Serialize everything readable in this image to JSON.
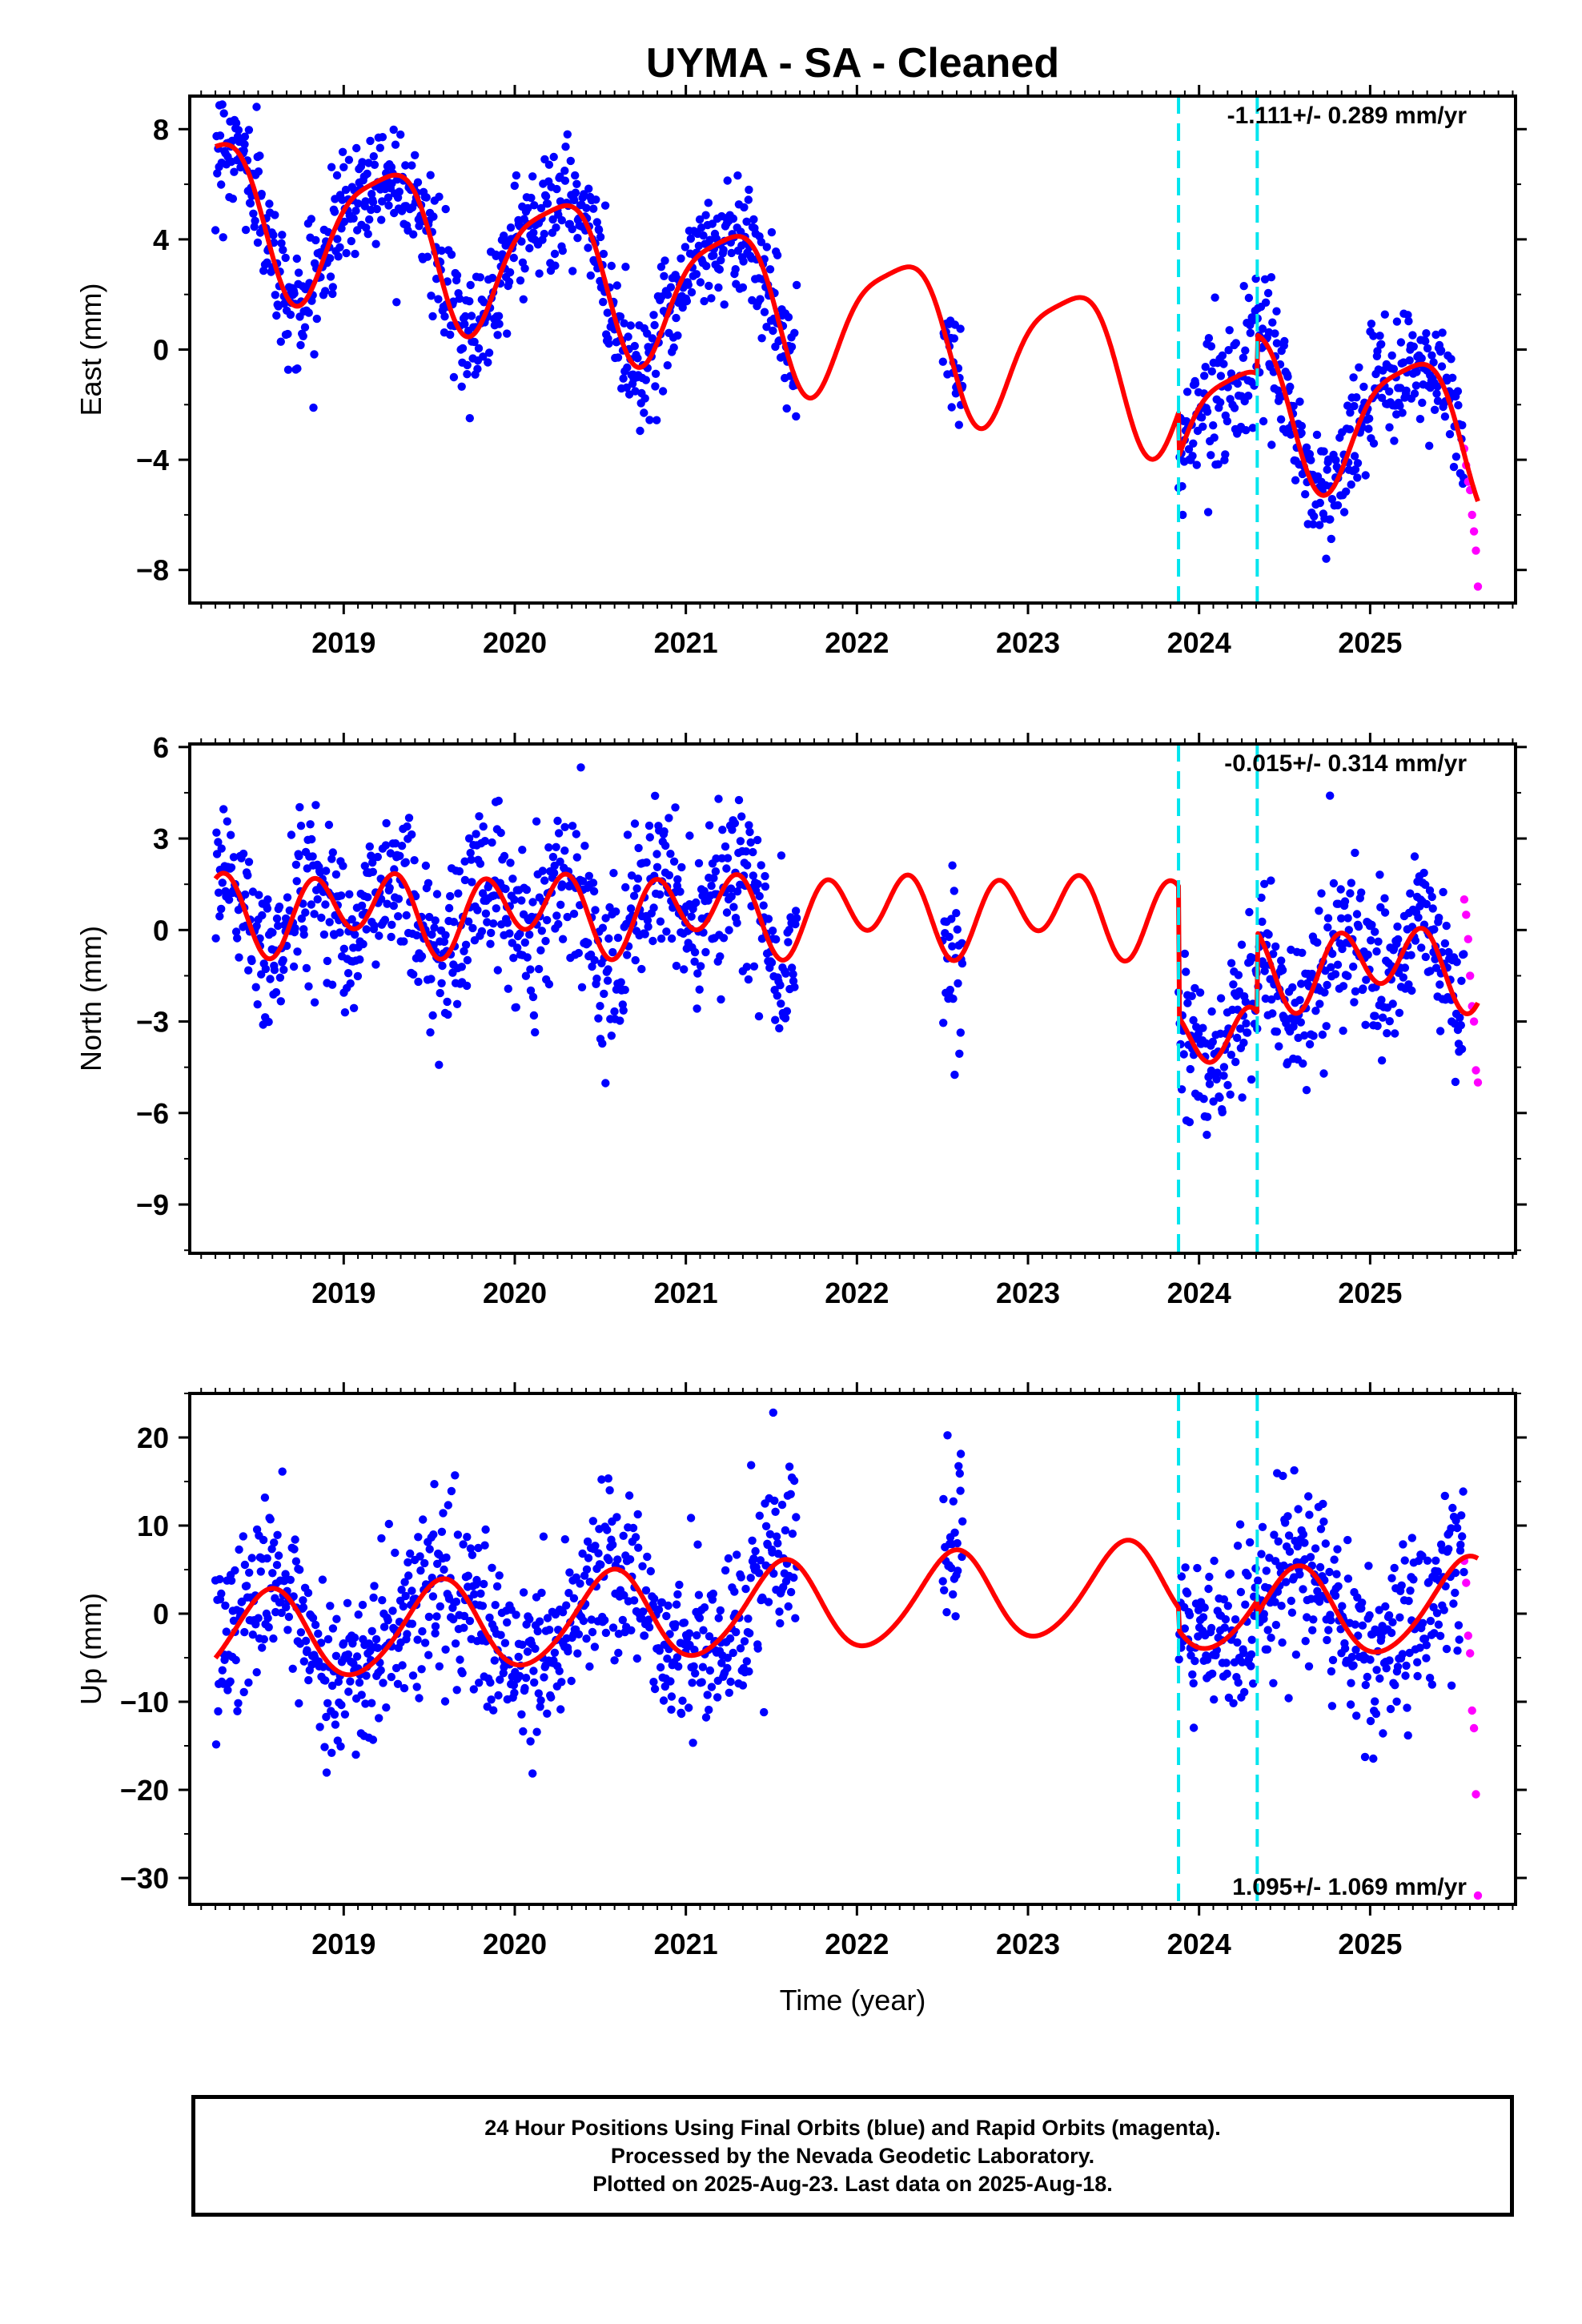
{
  "title": "UYMA  - SA - Cleaned",
  "colors": {
    "final_orbits": "#0000ff",
    "rapid_orbits": "#ff00ff",
    "model": "#ff0000",
    "equipment_change": "#00e5ee",
    "axes": "#000000"
  },
  "footer": {
    "line1": "24 Hour Positions Using Final Orbits (blue) and Rapid Orbits (magenta).",
    "line2": "Processed by the Nevada Geodetic Laboratory.",
    "line3": "Plotted on 2025-Aug-23. Last data on 2025-Aug-18."
  },
  "chart_data": [
    {
      "type": "scatter",
      "component": "East",
      "ylabel": "East (mm)",
      "xlabel": "",
      "xlim": [
        2018.1,
        2025.85
      ],
      "ylim": [
        -9.2,
        9.2
      ],
      "yticks": [
        -8,
        -4,
        0,
        4,
        8
      ],
      "xticks": [
        2019,
        2020,
        2021,
        2022,
        2023,
        2024,
        2025
      ],
      "grid": false,
      "rate_label": "-1.111+/- 0.289 mm/yr",
      "rate_label_position": "top-right",
      "offsets": [
        2023.88,
        2024.34
      ],
      "data_segments": [
        [
          2018.25,
          2021.65
        ],
        [
          2022.5,
          2022.62
        ],
        [
          2023.88,
          2025.55
        ]
      ],
      "rapid_range": [
        2025.55,
        2025.63
      ],
      "rapid_values": [
        -3.6,
        -4.2,
        -4.8,
        -5.1,
        -6.0,
        -6.6,
        -7.3,
        -8.6
      ],
      "model": {
        "start": 2018.25,
        "end": 2025.63,
        "mean": 1.2,
        "trend_mm_per_yr": -1.111,
        "reference_year": 2021.9,
        "annual_amplitude": 2.6,
        "annual_phase": 0.05,
        "semiannual_amplitude": 0.6,
        "semiannual_phase": 2.2,
        "steps": [
          {
            "year": 2023.88,
            "size": -1.6
          },
          {
            "year": 2024.34,
            "size": 1.4
          }
        ]
      },
      "scatter_noise_std": 1.1
    },
    {
      "type": "scatter",
      "component": "North",
      "ylabel": "North (mm)",
      "xlabel": "",
      "xlim": [
        2018.1,
        2025.85
      ],
      "ylim": [
        -10.6,
        6.1
      ],
      "yticks": [
        -9,
        -6,
        -3,
        0,
        3,
        6
      ],
      "xticks": [
        2019,
        2020,
        2021,
        2022,
        2023,
        2024,
        2025
      ],
      "grid": false,
      "rate_label": "-0.015+/- 0.314 mm/yr",
      "rate_label_position": "top-right",
      "offsets": [
        2023.88,
        2024.34
      ],
      "data_segments": [
        [
          2018.25,
          2021.65
        ],
        [
          2022.5,
          2022.62
        ],
        [
          2023.88,
          2025.55
        ]
      ],
      "rapid_range": [
        2025.55,
        2025.63
      ],
      "rapid_values": [
        1.0,
        0.5,
        -0.3,
        -1.5,
        -2.5,
        -3.0,
        -4.6,
        -5.0
      ],
      "model": {
        "start": 2018.25,
        "end": 2025.63,
        "mean": 0.6,
        "trend_mm_per_yr": -0.015,
        "reference_year": 2021.9,
        "annual_amplitude": 0.5,
        "annual_phase": 1.0,
        "semiannual_amplitude": 1.1,
        "semiannual_phase": 3.9,
        "steps": [
          {
            "year": 2023.88,
            "size": -4.3
          },
          {
            "year": 2024.34,
            "size": 2.6
          }
        ]
      },
      "scatter_noise_std": 1.3
    },
    {
      "type": "scatter",
      "component": "Up",
      "ylabel": "Up (mm)",
      "xlabel": "Time (year)",
      "xlim": [
        2018.1,
        2025.85
      ],
      "ylim": [
        -33,
        25
      ],
      "yticks": [
        -30,
        -20,
        -10,
        0,
        10,
        20
      ],
      "xticks": [
        2019,
        2020,
        2021,
        2022,
        2023,
        2024,
        2025
      ],
      "grid": false,
      "rate_label": "1.095+/- 1.069 mm/yr",
      "rate_label_position": "bottom-right",
      "offsets": [
        2023.88,
        2024.34
      ],
      "data_segments": [
        [
          2018.25,
          2021.65
        ],
        [
          2022.5,
          2022.62
        ],
        [
          2023.88,
          2025.55
        ]
      ],
      "rapid_range": [
        2025.55,
        2025.63
      ],
      "rapid_values": [
        6.0,
        3.5,
        -2.5,
        -4.5,
        -11.0,
        -13.0,
        -20.5,
        -32.0
      ],
      "model": {
        "start": 2018.25,
        "end": 2025.63,
        "mean": 1.0,
        "trend_mm_per_yr": 1.095,
        "reference_year": 2021.9,
        "annual_amplitude": 5.1,
        "annual_phase": 4.3,
        "semiannual_amplitude": 0.5,
        "semiannual_phase": 0.0,
        "steps": [
          {
            "year": 2023.88,
            "size": -2.5
          },
          {
            "year": 2024.34,
            "size": -1.5
          }
        ]
      },
      "scatter_noise_std": 4.8
    }
  ]
}
